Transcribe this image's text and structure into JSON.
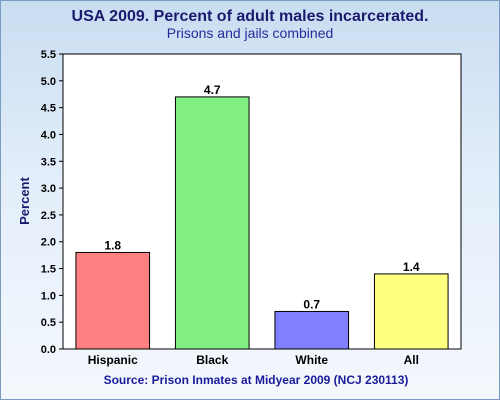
{
  "chart_data": {
    "type": "bar",
    "title": "USA 2009. Percent of adult males incarcerated.",
    "subtitle": "Prisons and jails combined",
    "ylabel": "Percent",
    "xlabel": "",
    "footer": "Source: Prison Inmates at Midyear 2009 (NCJ 230113)",
    "categories": [
      "Hispanic",
      "Black",
      "White",
      "All"
    ],
    "values": [
      1.8,
      4.7,
      0.7,
      1.4
    ],
    "value_labels": [
      "1.8",
      "4.7",
      "0.7",
      "1.4"
    ],
    "colors": [
      "#ff8080",
      "#80ee80",
      "#8080ff",
      "#ffff80"
    ],
    "ylim": [
      0,
      5.5
    ],
    "yticks": [
      "0.0",
      "0.5",
      "1.0",
      "1.5",
      "2.0",
      "2.5",
      "3.0",
      "3.5",
      "4.0",
      "4.5",
      "5.0",
      "5.5"
    ],
    "grid": false,
    "legend": "none"
  }
}
